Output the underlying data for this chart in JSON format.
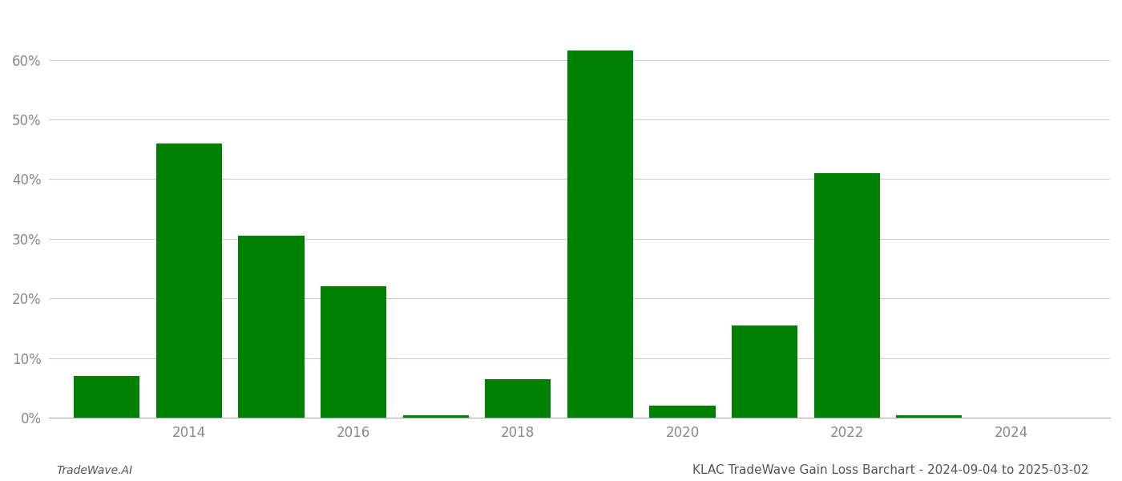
{
  "years": [
    2013,
    2014,
    2015,
    2016,
    2017,
    2018,
    2019,
    2020,
    2021,
    2022,
    2023,
    2024
  ],
  "values": [
    0.07,
    0.46,
    0.305,
    0.22,
    0.005,
    0.065,
    0.615,
    0.02,
    0.155,
    0.41,
    0.005,
    0.0
  ],
  "bar_color": "#008000",
  "background_color": "#ffffff",
  "title": "KLAC TradeWave Gain Loss Barchart - 2024-09-04 to 2025-03-02",
  "footer_left": "TradeWave.AI",
  "ylim": [
    0,
    0.68
  ],
  "yticks": [
    0.0,
    0.1,
    0.2,
    0.3,
    0.4,
    0.5,
    0.6
  ],
  "xlabel_ticks": [
    2014,
    2016,
    2018,
    2020,
    2022,
    2024
  ],
  "xlim": [
    2012.3,
    2025.2
  ],
  "grid_color": "#cccccc",
  "tick_label_color": "#888888",
  "title_fontsize": 11,
  "footer_fontsize": 10,
  "tick_fontsize": 12
}
